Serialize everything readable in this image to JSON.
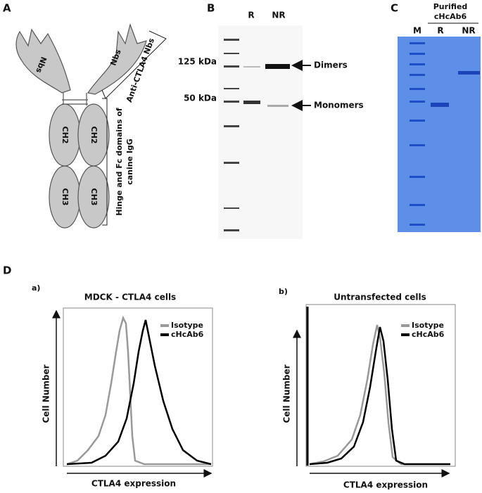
{
  "panel_a": {
    "label": "A",
    "nbs_left": "Nbs",
    "nbs_right": "Nbs",
    "ch2_left": "CH2",
    "ch2_right": "CH2",
    "ch3_left": "CH3",
    "ch3_right": "CH3",
    "nbs_bracket": "Anti-CTLA4 Nbs",
    "fc_bracket": [
      "Hinge and Fc domains of",
      "canine IgG"
    ]
  },
  "panel_b": {
    "label": "B",
    "lanes": [
      "R",
      "NR"
    ],
    "markers": [
      "125 kDa",
      "50 kDa"
    ],
    "arrows": [
      "Dimers",
      "Monomers"
    ]
  },
  "panel_c": {
    "label": "C",
    "header": [
      "Purified",
      "cHcAb6"
    ],
    "lanes": [
      "M",
      "R",
      "NR"
    ]
  },
  "panel_d": {
    "label": "D",
    "plots": [
      {
        "label": "a)",
        "title": "MDCK - CTLA4 cells",
        "legend": [
          "Isotype",
          "cHcAb6"
        ],
        "y_label": "Cell Number",
        "x_label": "CTLA4 expression"
      },
      {
        "label": "b)",
        "title": "Untransfected cells",
        "legend": [
          "Isotype",
          "cHcAb6"
        ],
        "y_label": "Cell Number",
        "x_label": "CTLA4 expression"
      }
    ]
  }
}
